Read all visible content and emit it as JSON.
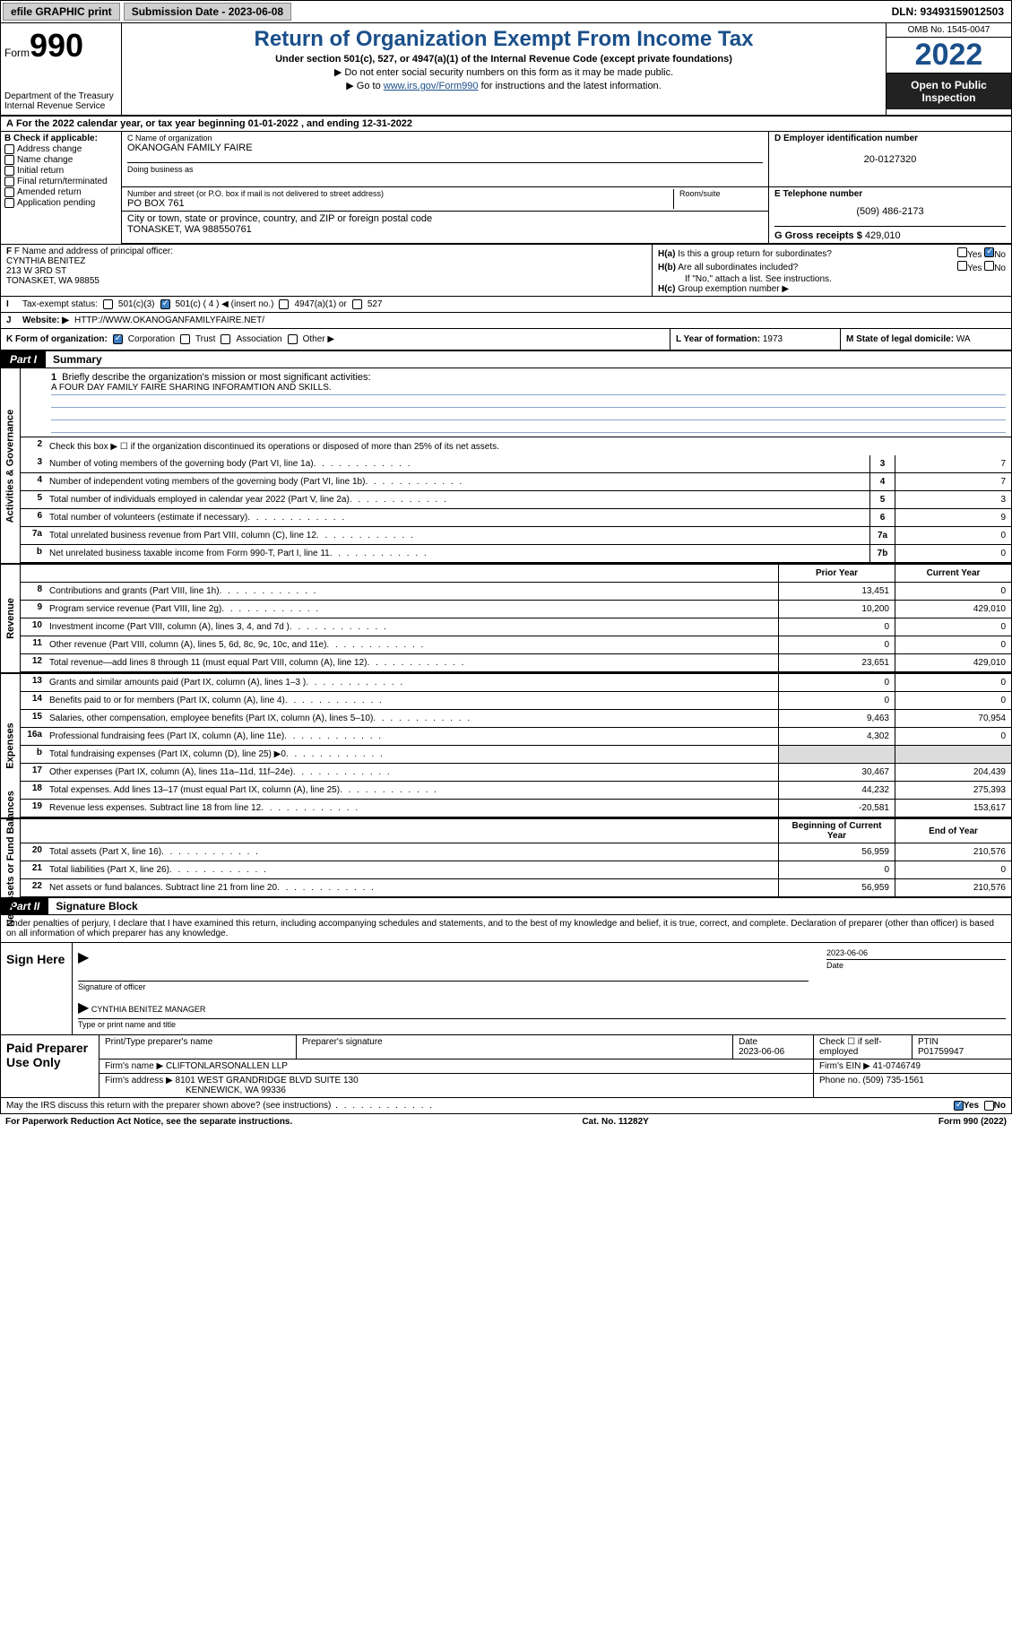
{
  "topbar": {
    "efile_label": "efile GRAPHIC print",
    "submission_label": "Submission Date - 2023-06-08",
    "dln": "DLN: 93493159012503"
  },
  "header": {
    "form_word": "Form",
    "form_num": "990",
    "dept": "Department of the Treasury",
    "irs": "Internal Revenue Service",
    "title": "Return of Organization Exempt From Income Tax",
    "subtitle": "Under section 501(c), 527, or 4947(a)(1) of the Internal Revenue Code (except private foundations)",
    "note1": "Do not enter social security numbers on this form as it may be made public.",
    "note2_pre": "Go to ",
    "note2_link": "www.irs.gov/Form990",
    "note2_post": " for instructions and the latest information.",
    "omb": "OMB No. 1545-0047",
    "year": "2022",
    "open": "Open to Public Inspection"
  },
  "line_a": "For the 2022 calendar year, or tax year beginning 01-01-2022   , and ending 12-31-2022",
  "b": {
    "label": "B Check if applicable:",
    "opts": [
      "Address change",
      "Name change",
      "Initial return",
      "Final return/terminated",
      "Amended return",
      "Application pending"
    ]
  },
  "c": {
    "name_lbl": "C Name of organization",
    "name": "OKANOGAN FAMILY FAIRE",
    "dba_lbl": "Doing business as",
    "addr_lbl": "Number and street (or P.O. box if mail is not delivered to street address)",
    "room_lbl": "Room/suite",
    "addr": "PO BOX 761",
    "city_lbl": "City or town, state or province, country, and ZIP or foreign postal code",
    "city": "TONASKET, WA  988550761"
  },
  "d": {
    "lbl": "D Employer identification number",
    "val": "20-0127320"
  },
  "e": {
    "lbl": "E Telephone number",
    "val": "(509) 486-2173"
  },
  "g": {
    "lbl": "G Gross receipts $",
    "val": "429,010"
  },
  "f": {
    "lbl": "F Name and address of principal officer:",
    "name": "CYNTHIA BENITEZ",
    "street": "213 W 3RD ST",
    "city": "TONASKET, WA  98855"
  },
  "h": {
    "a": "Is this a group return for subordinates?",
    "b": "Are all subordinates included?",
    "b_note": "If \"No,\" attach a list. See instructions.",
    "c": "Group exemption number ▶",
    "yes": "Yes",
    "no": "No"
  },
  "i": {
    "lbl": "Tax-exempt status:",
    "o1": "501(c)(3)",
    "o2": "501(c) ( 4 ) ◀ (insert no.)",
    "o3": "4947(a)(1) or",
    "o4": "527"
  },
  "j": {
    "lbl": "Website: ▶",
    "val": "HTTP://WWW.OKANOGANFAMILYFAIRE.NET/"
  },
  "k": {
    "lbl": "K Form of organization:",
    "o1": "Corporation",
    "o2": "Trust",
    "o3": "Association",
    "o4": "Other ▶"
  },
  "l": {
    "lbl": "L Year of formation:",
    "val": "1973"
  },
  "m": {
    "lbl": "M State of legal domicile:",
    "val": "WA"
  },
  "part1": {
    "tag": "Part I",
    "title": "Summary"
  },
  "mission": {
    "lbl": "Briefly describe the organization's mission or most significant activities:",
    "text": "A FOUR DAY FAMILY FAIRE SHARING INFORAMTION AND SKILLS."
  },
  "line2": "Check this box ▶ ☐  if the organization discontinued its operations or disposed of more than 25% of its net assets.",
  "sides": {
    "gov": "Activities & Governance",
    "rev": "Revenue",
    "exp": "Expenses",
    "net": "Net Assets or Fund Balances"
  },
  "rows_gov": [
    {
      "n": "3",
      "d": "Number of voting members of the governing body (Part VI, line 1a)",
      "box": "3",
      "v": "7"
    },
    {
      "n": "4",
      "d": "Number of independent voting members of the governing body (Part VI, line 1b)",
      "box": "4",
      "v": "7"
    },
    {
      "n": "5",
      "d": "Total number of individuals employed in calendar year 2022 (Part V, line 2a)",
      "box": "5",
      "v": "3"
    },
    {
      "n": "6",
      "d": "Total number of volunteers (estimate if necessary)",
      "box": "6",
      "v": "9"
    },
    {
      "n": "7a",
      "d": "Total unrelated business revenue from Part VIII, column (C), line 12",
      "box": "7a",
      "v": "0"
    },
    {
      "n": "b",
      "d": "Net unrelated business taxable income from Form 990-T, Part I, line 11",
      "box": "7b",
      "v": "0"
    }
  ],
  "col_hdrs": {
    "prior": "Prior Year",
    "current": "Current Year",
    "begin": "Beginning of Current Year",
    "end": "End of Year"
  },
  "rows_rev": [
    {
      "n": "8",
      "d": "Contributions and grants (Part VIII, line 1h)",
      "p": "13,451",
      "c": "0"
    },
    {
      "n": "9",
      "d": "Program service revenue (Part VIII, line 2g)",
      "p": "10,200",
      "c": "429,010"
    },
    {
      "n": "10",
      "d": "Investment income (Part VIII, column (A), lines 3, 4, and 7d )",
      "p": "0",
      "c": "0"
    },
    {
      "n": "11",
      "d": "Other revenue (Part VIII, column (A), lines 5, 6d, 8c, 9c, 10c, and 11e)",
      "p": "0",
      "c": "0"
    },
    {
      "n": "12",
      "d": "Total revenue—add lines 8 through 11 (must equal Part VIII, column (A), line 12)",
      "p": "23,651",
      "c": "429,010"
    }
  ],
  "rows_exp": [
    {
      "n": "13",
      "d": "Grants and similar amounts paid (Part IX, column (A), lines 1–3 )",
      "p": "0",
      "c": "0"
    },
    {
      "n": "14",
      "d": "Benefits paid to or for members (Part IX, column (A), line 4)",
      "p": "0",
      "c": "0"
    },
    {
      "n": "15",
      "d": "Salaries, other compensation, employee benefits (Part IX, column (A), lines 5–10)",
      "p": "9,463",
      "c": "70,954"
    },
    {
      "n": "16a",
      "d": "Professional fundraising fees (Part IX, column (A), line 11e)",
      "p": "4,302",
      "c": "0"
    },
    {
      "n": "b",
      "d": "Total fundraising expenses (Part IX, column (D), line 25) ▶0",
      "p": "",
      "c": "",
      "shade": true
    },
    {
      "n": "17",
      "d": "Other expenses (Part IX, column (A), lines 11a–11d, 11f–24e)",
      "p": "30,467",
      "c": "204,439"
    },
    {
      "n": "18",
      "d": "Total expenses. Add lines 13–17 (must equal Part IX, column (A), line 25)",
      "p": "44,232",
      "c": "275,393"
    },
    {
      "n": "19",
      "d": "Revenue less expenses. Subtract line 18 from line 12",
      "p": "-20,581",
      "c": "153,617"
    }
  ],
  "rows_net": [
    {
      "n": "20",
      "d": "Total assets (Part X, line 16)",
      "p": "56,959",
      "c": "210,576"
    },
    {
      "n": "21",
      "d": "Total liabilities (Part X, line 26)",
      "p": "0",
      "c": "0"
    },
    {
      "n": "22",
      "d": "Net assets or fund balances. Subtract line 21 from line 20",
      "p": "56,959",
      "c": "210,576"
    }
  ],
  "part2": {
    "tag": "Part II",
    "title": "Signature Block"
  },
  "sig_intro": "Under penalties of perjury, I declare that I have examined this return, including accompanying schedules and statements, and to the best of my knowledge and belief, it is true, correct, and complete. Declaration of preparer (other than officer) is based on all information of which preparer has any knowledge.",
  "sign": {
    "here": "Sign Here",
    "sig_lbl": "Signature of officer",
    "date_lbl": "Date",
    "date": "2023-06-06",
    "name": "CYNTHIA BENITEZ  MANAGER",
    "name_lbl": "Type or print name and title"
  },
  "paid": {
    "label": "Paid Preparer Use Only",
    "h1": "Print/Type preparer's name",
    "h2": "Preparer's signature",
    "h3": "Date",
    "h3v": "2023-06-06",
    "h4": "Check ☐ if self-employed",
    "h5": "PTIN",
    "h5v": "P01759947",
    "firm_lbl": "Firm's name    ▶",
    "firm": "CLIFTONLARSONALLEN LLP",
    "ein_lbl": "Firm's EIN ▶",
    "ein": "41-0746749",
    "addr_lbl": "Firm's address ▶",
    "addr1": "8101 WEST GRANDRIDGE BLVD SUITE 130",
    "addr2": "KENNEWICK, WA  99336",
    "phone_lbl": "Phone no.",
    "phone": "(509) 735-1561"
  },
  "may_discuss": "May the IRS discuss this return with the preparer shown above? (see instructions)",
  "footer": {
    "left": "For Paperwork Reduction Act Notice, see the separate instructions.",
    "mid": "Cat. No. 11282Y",
    "right": "Form 990 (2022)"
  }
}
